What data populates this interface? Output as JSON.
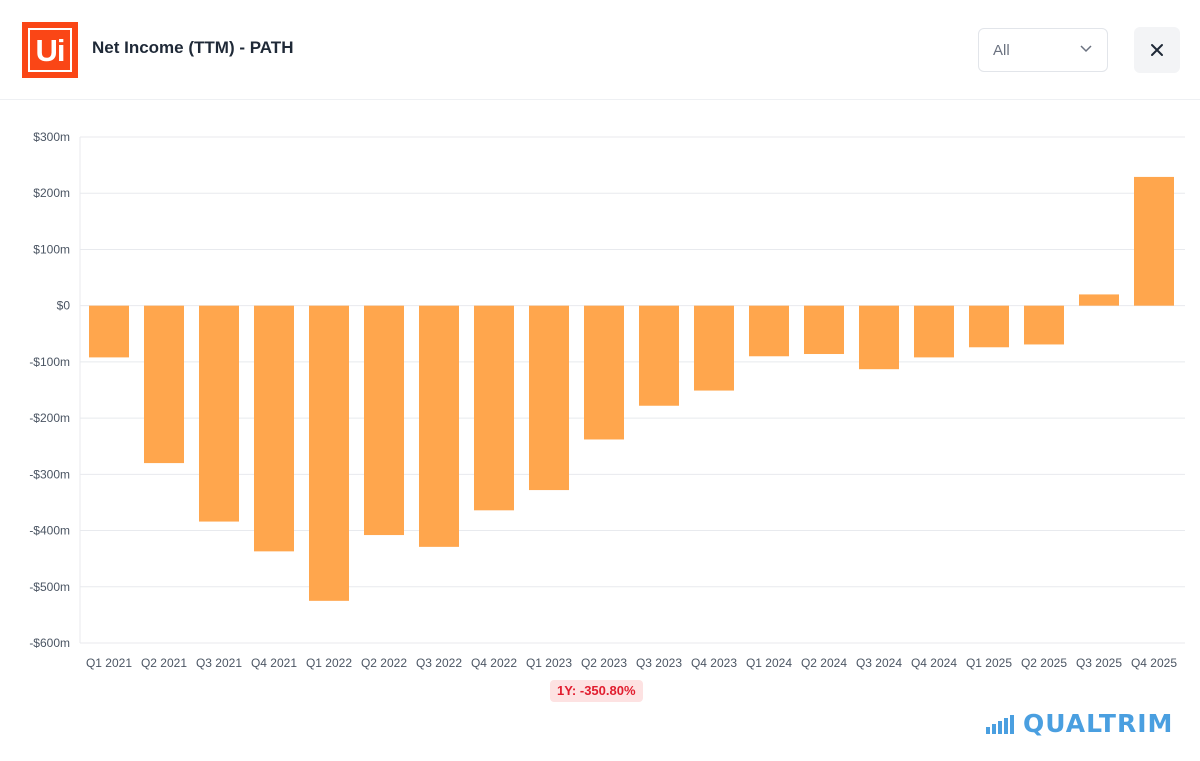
{
  "header": {
    "logo_text": "Ui",
    "title": "Net Income (TTM) - PATH",
    "range_select": {
      "value": "All"
    },
    "close_symbol": "✕"
  },
  "chart_data": {
    "type": "bar",
    "title": "Net Income (TTM) - PATH",
    "xlabel": "",
    "ylabel": "",
    "categories": [
      "Q1 2021",
      "Q2 2021",
      "Q3 2021",
      "Q4 2021",
      "Q1 2022",
      "Q2 2022",
      "Q3 2022",
      "Q4 2022",
      "Q1 2023",
      "Q2 2023",
      "Q3 2023",
      "Q4 2023",
      "Q1 2024",
      "Q2 2024",
      "Q3 2024",
      "Q4 2024",
      "Q1 2025",
      "Q2 2025",
      "Q3 2025",
      "Q4 2025"
    ],
    "values": [
      -92,
      -280,
      -384,
      -437,
      -525,
      -408,
      -429,
      -364,
      -328,
      -238,
      -178,
      -151,
      -90,
      -86,
      -113,
      -92,
      -74,
      -69,
      20,
      229
    ],
    "unit": "$m",
    "ylim": [
      -600,
      300
    ],
    "yticks": [
      300,
      200,
      100,
      0,
      -100,
      -200,
      -300,
      -400,
      -500,
      -600
    ],
    "ytick_labels": [
      "$300m",
      "$200m",
      "$100m",
      "$0",
      "-$100m",
      "-$200m",
      "-$300m",
      "-$400m",
      "-$500m",
      "-$600m"
    ],
    "grid": true,
    "bar_color": "#ffa64d"
  },
  "change_badge": "1Y: -350.80%",
  "brand": {
    "name": "QUALTRIM",
    "color": "#4a9fe0"
  }
}
